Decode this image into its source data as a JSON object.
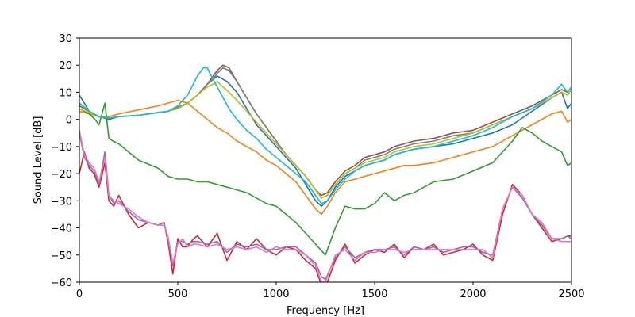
{
  "chart_data": {
    "type": "line",
    "title": "",
    "xlabel": "Frequency [Hz]",
    "ylabel": "Sound Level [dB]",
    "xlim": [
      0,
      2500
    ],
    "ylim": [
      -60,
      30
    ],
    "xticks": [
      0,
      500,
      1000,
      1500,
      2000,
      2500
    ],
    "yticks": [
      -60,
      -50,
      -40,
      -30,
      -20,
      -10,
      0,
      10,
      20,
      30
    ],
    "grid": false,
    "legend": "none",
    "series": [
      {
        "color": "#1f77b4",
        "x": [
          0,
          50,
          100,
          150,
          200,
          300,
          400,
          450,
          500,
          550,
          600,
          650,
          700,
          750,
          800,
          850,
          900,
          950,
          1000,
          1050,
          1100,
          1150,
          1200,
          1230,
          1260,
          1300,
          1350,
          1400,
          1450,
          1500,
          1550,
          1600,
          1650,
          1700,
          1800,
          1900,
          2000,
          2100,
          2200,
          2300,
          2400,
          2450,
          2480,
          2500
        ],
        "y": [
          9,
          3,
          1,
          0,
          1,
          1.5,
          2.5,
          3,
          4,
          6,
          9,
          13,
          16,
          14,
          10,
          4,
          -2,
          -6,
          -10,
          -14,
          -18,
          -24,
          -30,
          -32,
          -30,
          -25,
          -21,
          -19,
          -17,
          -16,
          -15,
          -13,
          -12,
          -11,
          -10,
          -9,
          -7,
          -5,
          -2,
          3,
          8,
          10,
          4,
          6
        ]
      },
      {
        "color": "#ff7f0e",
        "x": [
          0,
          50,
          100,
          150,
          200,
          300,
          400,
          450,
          500,
          550,
          600,
          650,
          700,
          750,
          800,
          850,
          900,
          950,
          1000,
          1050,
          1100,
          1150,
          1200,
          1230,
          1260,
          1300,
          1350,
          1400,
          1450,
          1500,
          1550,
          1600,
          1650,
          1700,
          1800,
          1900,
          2000,
          2100,
          2200,
          2300,
          2400,
          2450,
          2480,
          2500
        ],
        "y": [
          3,
          2,
          1,
          1,
          2,
          3.5,
          5,
          6,
          7,
          6,
          3,
          0,
          -3,
          -5,
          -8,
          -10,
          -12,
          -15,
          -17,
          -20,
          -23,
          -28,
          -33,
          -35,
          -32,
          -27,
          -23,
          -22,
          -21,
          -20,
          -19,
          -18,
          -17,
          -17,
          -16,
          -14,
          -12,
          -10,
          -6,
          -2,
          2,
          3,
          -1,
          0
        ]
      },
      {
        "color": "#2ca02c",
        "x": [
          0,
          50,
          80,
          100,
          130,
          150,
          170,
          200,
          300,
          400,
          450,
          500,
          550,
          600,
          650,
          700,
          750,
          800,
          850,
          900,
          950,
          1000,
          1050,
          1100,
          1150,
          1200,
          1250,
          1300,
          1350,
          1400,
          1450,
          1500,
          1550,
          1600,
          1650,
          1700,
          1800,
          1900,
          2000,
          2100,
          2150,
          2200,
          2250,
          2300,
          2350,
          2400,
          2450,
          2480,
          2500
        ],
        "y": [
          4,
          2,
          0,
          -2,
          6,
          -7,
          -8,
          -9,
          -15,
          -18,
          -21,
          -22,
          -22,
          -23,
          -23,
          -24,
          -25,
          -26,
          -27,
          -29,
          -31,
          -32,
          -35,
          -38,
          -42,
          -46,
          -50,
          -40,
          -32,
          -33,
          -33,
          -31,
          -27,
          -30,
          -28,
          -27,
          -23,
          -22,
          -19,
          -16,
          -12,
          -8,
          -3,
          -5,
          -8,
          -10,
          -12,
          -17,
          -16
        ]
      },
      {
        "color": "#d62728",
        "x": [
          0,
          25,
          50,
          75,
          100,
          130,
          150,
          175,
          200,
          250,
          300,
          350,
          400,
          430,
          450,
          475,
          500,
          525,
          550,
          580,
          600,
          650,
          700,
          750,
          800,
          850,
          900,
          950,
          1000,
          1050,
          1100,
          1150,
          1200,
          1230,
          1250,
          1300,
          1350,
          1400,
          1450,
          1500,
          1550,
          1600,
          1650,
          1700,
          1750,
          1800,
          1850,
          1900,
          1950,
          2000,
          2050,
          2100,
          2150,
          2200,
          2250,
          2300,
          2350,
          2400,
          2450,
          2480,
          2500
        ],
        "y": [
          -20,
          -12,
          -18,
          -20,
          -25,
          -16,
          -30,
          -32,
          -28,
          -35,
          -40,
          -38,
          -39,
          -38,
          -45,
          -57,
          -44,
          -47,
          -47,
          -44,
          -43,
          -47,
          -42,
          -52,
          -45,
          -48,
          -44,
          -48,
          -50,
          -47,
          -48,
          -52,
          -55,
          -61,
          -62,
          -52,
          -46,
          -53,
          -50,
          -48,
          -49,
          -46,
          -51,
          -47,
          -48,
          -46,
          -50,
          -49,
          -48,
          -46,
          -50,
          -52,
          -35,
          -24,
          -28,
          -35,
          -40,
          -45,
          -44,
          -43,
          -43
        ]
      },
      {
        "color": "#9467bd",
        "x": [
          0,
          25,
          50,
          75,
          100,
          130,
          150,
          175,
          200,
          250,
          300,
          350,
          400,
          430,
          450,
          475,
          500,
          525,
          550,
          580,
          600,
          650,
          700,
          750,
          800,
          850,
          900,
          950,
          1000,
          1050,
          1100,
          1150,
          1200,
          1230,
          1250,
          1300,
          1350,
          1400,
          1450,
          1500,
          1550,
          1600,
          1650,
          1700,
          1750,
          1800,
          1850,
          1900,
          1950,
          2000,
          2050,
          2100,
          2150,
          2200,
          2250,
          2300,
          2350,
          2400,
          2450,
          2480,
          2500
        ],
        "y": [
          -5,
          -14,
          -17,
          -19,
          -24,
          -12,
          -28,
          -31,
          -30,
          -34,
          -37,
          -38,
          -39,
          -38,
          -44,
          -54,
          -45,
          -45,
          -46,
          -45,
          -45,
          -46,
          -45,
          -49,
          -46,
          -47,
          -46,
          -48,
          -48,
          -47,
          -47,
          -50,
          -53,
          -58,
          -59,
          -51,
          -47,
          -51,
          -49,
          -48,
          -48,
          -47,
          -50,
          -47,
          -48,
          -47,
          -49,
          -48,
          -47,
          -47,
          -49,
          -50,
          -33,
          -25,
          -29,
          -35,
          -39,
          -44,
          -44,
          -43,
          -44
        ]
      },
      {
        "color": "#8c564b",
        "x": [
          0,
          50,
          100,
          150,
          200,
          300,
          400,
          450,
          500,
          550,
          600,
          650,
          680,
          700,
          730,
          760,
          800,
          850,
          900,
          950,
          1000,
          1050,
          1100,
          1150,
          1200,
          1230,
          1260,
          1300,
          1350,
          1400,
          1450,
          1500,
          1550,
          1600,
          1650,
          1700,
          1800,
          1900,
          2000,
          2100,
          2200,
          2300,
          2400,
          2450,
          2480,
          2500
        ],
        "y": [
          5,
          3,
          1,
          0.5,
          1,
          1.5,
          2.5,
          3,
          4,
          6,
          9,
          13,
          16,
          18,
          20,
          19,
          14,
          8,
          2,
          -3,
          -8,
          -13,
          -17,
          -21,
          -26,
          -28,
          -27,
          -23,
          -19,
          -17,
          -14,
          -13,
          -12,
          -10,
          -9,
          -8,
          -7,
          -5,
          -4,
          -1,
          2,
          5,
          9,
          11,
          10,
          12
        ]
      },
      {
        "color": "#e377c2",
        "x": [
          0,
          25,
          50,
          75,
          100,
          130,
          150,
          175,
          200,
          250,
          300,
          350,
          400,
          430,
          450,
          475,
          500,
          525,
          550,
          580,
          600,
          650,
          700,
          750,
          800,
          850,
          900,
          950,
          1000,
          1050,
          1100,
          1150,
          1200,
          1230,
          1250,
          1300,
          1350,
          1400,
          1450,
          1500,
          1550,
          1600,
          1650,
          1700,
          1750,
          1800,
          1850,
          1900,
          1950,
          2000,
          2050,
          2100,
          2150,
          2200,
          2250,
          2300,
          2350,
          2400,
          2450,
          2480,
          2500
        ],
        "y": [
          -4,
          -13,
          -16,
          -18,
          -23,
          -14,
          -28,
          -30,
          -31,
          -33,
          -36,
          -38,
          -39,
          -39,
          -43,
          -53,
          -46,
          -44,
          -47,
          -46,
          -46,
          -47,
          -46,
          -48,
          -47,
          -48,
          -47,
          -49,
          -47,
          -48,
          -48,
          -50,
          -54,
          -60,
          -60,
          -50,
          -48,
          -52,
          -49,
          -49,
          -48,
          -48,
          -49,
          -48,
          -48,
          -48,
          -48,
          -48,
          -48,
          -48,
          -48,
          -51,
          -33,
          -25,
          -28,
          -35,
          -38,
          -44,
          -45,
          -45,
          -45
        ]
      },
      {
        "color": "#7f7f7f",
        "x": [
          0,
          50,
          100,
          150,
          200,
          300,
          400,
          450,
          500,
          550,
          600,
          650,
          680,
          700,
          730,
          760,
          800,
          850,
          900,
          950,
          1000,
          1050,
          1100,
          1150,
          1200,
          1230,
          1260,
          1300,
          1350,
          1400,
          1450,
          1500,
          1550,
          1600,
          1650,
          1700,
          1800,
          1900,
          2000,
          2100,
          2200,
          2300,
          2400,
          2450,
          2480,
          2500
        ],
        "y": [
          6,
          3,
          1,
          0.5,
          1,
          1.5,
          2.5,
          3,
          4.5,
          6,
          9,
          13,
          15,
          17,
          19,
          18,
          14,
          8,
          2,
          -3,
          -8,
          -13,
          -17,
          -21,
          -26,
          -29,
          -28,
          -24,
          -20,
          -18,
          -15,
          -14,
          -13,
          -11,
          -10,
          -9,
          -8,
          -6,
          -5,
          -2,
          1,
          4,
          8,
          10,
          9,
          11
        ]
      },
      {
        "color": "#bcbd22",
        "x": [
          0,
          50,
          100,
          150,
          200,
          300,
          400,
          450,
          500,
          550,
          600,
          650,
          680,
          700,
          730,
          760,
          800,
          850,
          900,
          950,
          1000,
          1050,
          1100,
          1150,
          1200,
          1230,
          1260,
          1300,
          1350,
          1400,
          1450,
          1500,
          1550,
          1600,
          1650,
          1700,
          1800,
          1900,
          2000,
          2100,
          2200,
          2300,
          2400,
          2450,
          2480,
          2500
        ],
        "y": [
          4,
          2.5,
          1,
          0.5,
          1,
          1.5,
          2.5,
          3,
          4,
          6,
          9,
          12,
          13,
          14,
          12,
          10,
          7,
          3,
          -1,
          -5,
          -9,
          -13,
          -17,
          -21,
          -26,
          -29,
          -28,
          -24,
          -20,
          -18,
          -16,
          -15,
          -14,
          -12,
          -11,
          -10,
          -9,
          -7,
          -5,
          -2,
          1,
          4,
          8,
          10,
          9,
          11
        ]
      },
      {
        "color": "#17becf",
        "x": [
          0,
          50,
          100,
          150,
          200,
          300,
          400,
          450,
          500,
          550,
          600,
          630,
          650,
          670,
          700,
          730,
          760,
          800,
          850,
          900,
          950,
          1000,
          1050,
          1100,
          1150,
          1200,
          1230,
          1260,
          1300,
          1350,
          1400,
          1450,
          1500,
          1550,
          1600,
          1650,
          1700,
          1800,
          1900,
          2000,
          2100,
          2200,
          2300,
          2400,
          2450,
          2480,
          2500
        ],
        "y": [
          6,
          3,
          1,
          0.5,
          1,
          1.5,
          2.5,
          3,
          5,
          9,
          16,
          19,
          19,
          16,
          12,
          8,
          4,
          0,
          -4,
          -7,
          -11,
          -14,
          -17,
          -20,
          -23,
          -28,
          -31,
          -30,
          -26,
          -22,
          -19,
          -17,
          -16,
          -15,
          -13,
          -12,
          -11,
          -10,
          -8,
          -6,
          -3,
          1,
          4,
          9,
          13,
          10,
          12
        ]
      }
    ]
  }
}
